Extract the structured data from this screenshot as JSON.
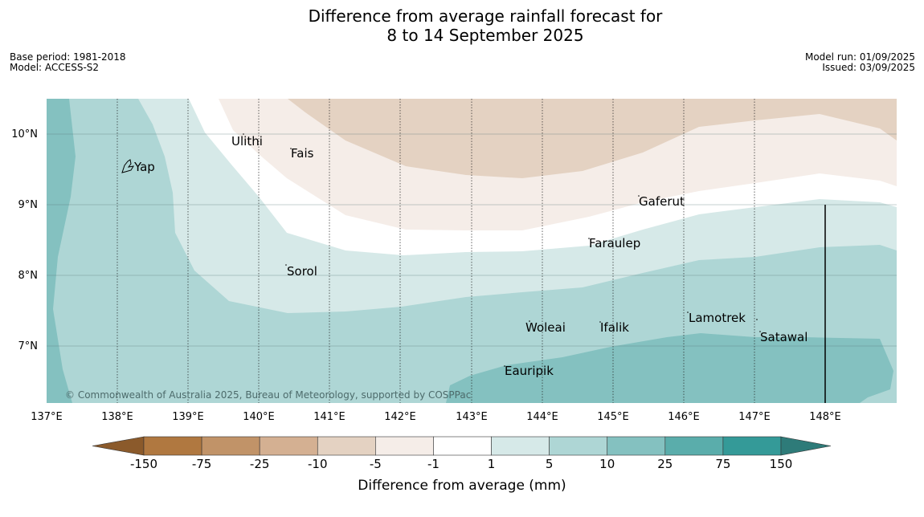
{
  "title_line1": "Difference from average rainfall forecast for",
  "title_line2": "8 to 14 September 2025",
  "meta": {
    "base_period": "Base period: 1981-2018",
    "model": "Model: ACCESS-S2",
    "model_run": "Model run: 01/09/2025",
    "issued": "Issued: 03/09/2025"
  },
  "map": {
    "x_ticks": [
      "137°E",
      "138°E",
      "139°E",
      "140°E",
      "141°E",
      "142°E",
      "143°E",
      "144°E",
      "145°E",
      "146°E",
      "147°E",
      "148°E"
    ],
    "y_ticks": [
      "10°N",
      "9°N",
      "8°N",
      "7°N"
    ],
    "places": [
      "Yap",
      "Ulithi",
      "Fais",
      "Gaferut",
      "Faraulep",
      "Sorol",
      "Woleai",
      "Ifalik",
      "Lamotrek",
      "Satawal",
      "Eauripik"
    ],
    "copyright": "© Commonwealth of Australia 2025, Bureau of Meteorology, supported by COSPPac"
  },
  "colorbar": {
    "labels": [
      "-150",
      "-75",
      "-25",
      "-10",
      "-5",
      "-1",
      "1",
      "5",
      "10",
      "25",
      "75",
      "150"
    ],
    "colors": [
      "#8b5a2b",
      "#b07840",
      "#c19368",
      "#d4b092",
      "#e4d2c2",
      "#f5ede8",
      "#ffffff",
      "#d6e9e8",
      "#aed6d5",
      "#84c1c0",
      "#5aadab",
      "#349a98",
      "#2e7b79"
    ],
    "title": "Difference from average (mm)"
  }
}
